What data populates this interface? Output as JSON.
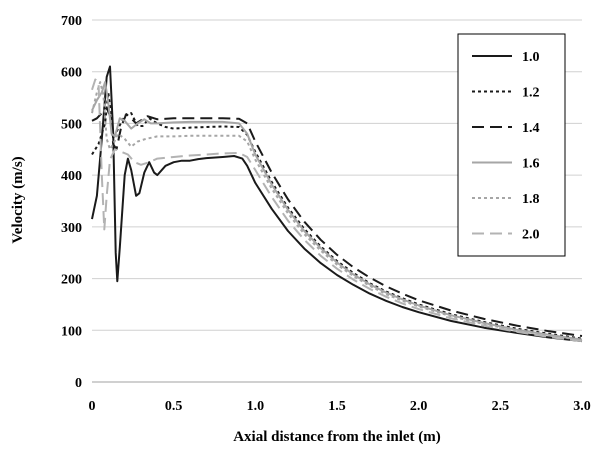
{
  "chart_data": {
    "type": "line",
    "title": "",
    "xlabel": "Axial distance from the inlet (m)",
    "ylabel": "Velocity (m/s)",
    "xlim": [
      0,
      3.0
    ],
    "ylim": [
      0,
      700
    ],
    "x_ticks": [
      "0",
      "0.5",
      "1.0",
      "1.5",
      "2.0",
      "2.5",
      "3.0"
    ],
    "y_ticks": [
      "0",
      "100",
      "200",
      "300",
      "400",
      "500",
      "600",
      "700"
    ],
    "grid": "horizontal",
    "legend_position": "top-right",
    "series": [
      {
        "name": "1.0",
        "color": "#1a1a1a",
        "dash": "solid",
        "points": [
          [
            0.0,
            315
          ],
          [
            0.03,
            360
          ],
          [
            0.06,
            470
          ],
          [
            0.09,
            590
          ],
          [
            0.11,
            610
          ],
          [
            0.13,
            480
          ],
          [
            0.145,
            250
          ],
          [
            0.155,
            195
          ],
          [
            0.17,
            260
          ],
          [
            0.2,
            400
          ],
          [
            0.22,
            432
          ],
          [
            0.24,
            410
          ],
          [
            0.27,
            360
          ],
          [
            0.29,
            365
          ],
          [
            0.32,
            405
          ],
          [
            0.35,
            425
          ],
          [
            0.38,
            405
          ],
          [
            0.4,
            400
          ],
          [
            0.45,
            418
          ],
          [
            0.5,
            425
          ],
          [
            0.55,
            428
          ],
          [
            0.6,
            428
          ],
          [
            0.65,
            431
          ],
          [
            0.7,
            433
          ],
          [
            0.8,
            435
          ],
          [
            0.87,
            437
          ],
          [
            0.92,
            432
          ],
          [
            0.95,
            418
          ],
          [
            1.0,
            385
          ],
          [
            1.1,
            335
          ],
          [
            1.2,
            292
          ],
          [
            1.3,
            258
          ],
          [
            1.4,
            230
          ],
          [
            1.5,
            207
          ],
          [
            1.6,
            188
          ],
          [
            1.7,
            171
          ],
          [
            1.8,
            157
          ],
          [
            1.9,
            145
          ],
          [
            2.0,
            135
          ],
          [
            2.2,
            118
          ],
          [
            2.4,
            105
          ],
          [
            2.6,
            95
          ],
          [
            2.8,
            86
          ],
          [
            3.0,
            79
          ]
        ]
      },
      {
        "name": "1.2",
        "color": "#1a1a1a",
        "dash": "3,3",
        "points": [
          [
            0.0,
            440
          ],
          [
            0.04,
            460
          ],
          [
            0.08,
            500
          ],
          [
            0.1,
            560
          ],
          [
            0.115,
            520
          ],
          [
            0.13,
            470
          ],
          [
            0.16,
            490
          ],
          [
            0.2,
            515
          ],
          [
            0.24,
            520
          ],
          [
            0.28,
            495
          ],
          [
            0.31,
            495
          ],
          [
            0.35,
            510
          ],
          [
            0.4,
            500
          ],
          [
            0.45,
            493
          ],
          [
            0.5,
            490
          ],
          [
            0.6,
            492
          ],
          [
            0.7,
            493
          ],
          [
            0.8,
            494
          ],
          [
            0.9,
            493
          ],
          [
            0.95,
            478
          ],
          [
            1.0,
            445
          ],
          [
            1.1,
            387
          ],
          [
            1.2,
            337
          ],
          [
            1.3,
            296
          ],
          [
            1.4,
            262
          ],
          [
            1.5,
            234
          ],
          [
            1.6,
            211
          ],
          [
            1.7,
            191
          ],
          [
            1.8,
            175
          ],
          [
            1.9,
            162
          ],
          [
            2.0,
            150
          ],
          [
            2.2,
            131
          ],
          [
            2.4,
            116
          ],
          [
            2.6,
            103
          ],
          [
            2.8,
            93
          ],
          [
            3.0,
            84
          ]
        ]
      },
      {
        "name": "1.4",
        "color": "#1a1a1a",
        "dash": "12,6",
        "points": [
          [
            0.0,
            505
          ],
          [
            0.03,
            510
          ],
          [
            0.06,
            520
          ],
          [
            0.09,
            530
          ],
          [
            0.11,
            515
          ],
          [
            0.13,
            460
          ],
          [
            0.15,
            450
          ],
          [
            0.18,
            495
          ],
          [
            0.21,
            518
          ],
          [
            0.24,
            510
          ],
          [
            0.27,
            500
          ],
          [
            0.3,
            506
          ],
          [
            0.34,
            514
          ],
          [
            0.4,
            508
          ],
          [
            0.5,
            510
          ],
          [
            0.6,
            510
          ],
          [
            0.7,
            510
          ],
          [
            0.8,
            510
          ],
          [
            0.9,
            509
          ],
          [
            0.95,
            500
          ],
          [
            1.0,
            465
          ],
          [
            1.1,
            405
          ],
          [
            1.2,
            353
          ],
          [
            1.3,
            310
          ],
          [
            1.4,
            275
          ],
          [
            1.5,
            246
          ],
          [
            1.6,
            222
          ],
          [
            1.7,
            202
          ],
          [
            1.8,
            185
          ],
          [
            1.9,
            171
          ],
          [
            2.0,
            158
          ],
          [
            2.2,
            138
          ],
          [
            2.4,
            122
          ],
          [
            2.6,
            109
          ],
          [
            2.8,
            98
          ],
          [
            3.0,
            89
          ]
        ]
      },
      {
        "name": "1.6",
        "color": "#a6a6a6",
        "dash": "solid",
        "points": [
          [
            0.0,
            525
          ],
          [
            0.03,
            545
          ],
          [
            0.06,
            560
          ],
          [
            0.08,
            580
          ],
          [
            0.1,
            540
          ],
          [
            0.12,
            480
          ],
          [
            0.14,
            475
          ],
          [
            0.17,
            510
          ],
          [
            0.2,
            505
          ],
          [
            0.24,
            490
          ],
          [
            0.28,
            500
          ],
          [
            0.32,
            508
          ],
          [
            0.36,
            500
          ],
          [
            0.4,
            500
          ],
          [
            0.5,
            502
          ],
          [
            0.6,
            503
          ],
          [
            0.7,
            503
          ],
          [
            0.8,
            503
          ],
          [
            0.9,
            500
          ],
          [
            0.95,
            480
          ],
          [
            1.0,
            440
          ],
          [
            1.1,
            382
          ],
          [
            1.2,
            333
          ],
          [
            1.3,
            292
          ],
          [
            1.4,
            259
          ],
          [
            1.5,
            231
          ],
          [
            1.6,
            208
          ],
          [
            1.7,
            189
          ],
          [
            1.8,
            173
          ],
          [
            1.9,
            160
          ],
          [
            2.0,
            148
          ],
          [
            2.2,
            129
          ],
          [
            2.4,
            114
          ],
          [
            2.6,
            101
          ],
          [
            2.8,
            91
          ],
          [
            3.0,
            82
          ]
        ]
      },
      {
        "name": "1.8",
        "color": "#a6a6a6",
        "dash": "3,3",
        "points": [
          [
            0.0,
            520
          ],
          [
            0.03,
            560
          ],
          [
            0.05,
            580
          ],
          [
            0.07,
            555
          ],
          [
            0.09,
            470
          ],
          [
            0.11,
            450
          ],
          [
            0.13,
            460
          ],
          [
            0.16,
            480
          ],
          [
            0.2,
            470
          ],
          [
            0.24,
            455
          ],
          [
            0.28,
            465
          ],
          [
            0.33,
            470
          ],
          [
            0.4,
            475
          ],
          [
            0.5,
            475
          ],
          [
            0.6,
            476
          ],
          [
            0.7,
            476
          ],
          [
            0.8,
            476
          ],
          [
            0.9,
            476
          ],
          [
            0.95,
            465
          ],
          [
            1.0,
            430
          ],
          [
            1.1,
            374
          ],
          [
            1.2,
            326
          ],
          [
            1.3,
            286
          ],
          [
            1.4,
            254
          ],
          [
            1.5,
            227
          ],
          [
            1.6,
            205
          ],
          [
            1.7,
            186
          ],
          [
            1.8,
            170
          ],
          [
            1.9,
            157
          ],
          [
            2.0,
            146
          ],
          [
            2.2,
            127
          ],
          [
            2.4,
            112
          ],
          [
            2.6,
            100
          ],
          [
            2.8,
            90
          ],
          [
            3.0,
            81
          ]
        ]
      },
      {
        "name": "2.0",
        "color": "#b3b3b3",
        "dash": "12,6",
        "points": [
          [
            0.0,
            565
          ],
          [
            0.02,
            585
          ],
          [
            0.04,
            580
          ],
          [
            0.06,
            400
          ],
          [
            0.075,
            295
          ],
          [
            0.09,
            360
          ],
          [
            0.11,
            430
          ],
          [
            0.14,
            450
          ],
          [
            0.18,
            445
          ],
          [
            0.22,
            440
          ],
          [
            0.26,
            425
          ],
          [
            0.3,
            420
          ],
          [
            0.35,
            425
          ],
          [
            0.4,
            432
          ],
          [
            0.5,
            435
          ],
          [
            0.6,
            438
          ],
          [
            0.7,
            440
          ],
          [
            0.8,
            442
          ],
          [
            0.9,
            443
          ],
          [
            0.95,
            435
          ],
          [
            1.0,
            410
          ],
          [
            1.1,
            358
          ],
          [
            1.2,
            312
          ],
          [
            1.3,
            275
          ],
          [
            1.4,
            244
          ],
          [
            1.5,
            219
          ],
          [
            1.6,
            198
          ],
          [
            1.7,
            180
          ],
          [
            1.8,
            165
          ],
          [
            1.9,
            152
          ],
          [
            2.0,
            141
          ],
          [
            2.2,
            123
          ],
          [
            2.4,
            109
          ],
          [
            2.6,
            97
          ],
          [
            2.8,
            87
          ],
          [
            3.0,
            79
          ]
        ]
      }
    ]
  }
}
